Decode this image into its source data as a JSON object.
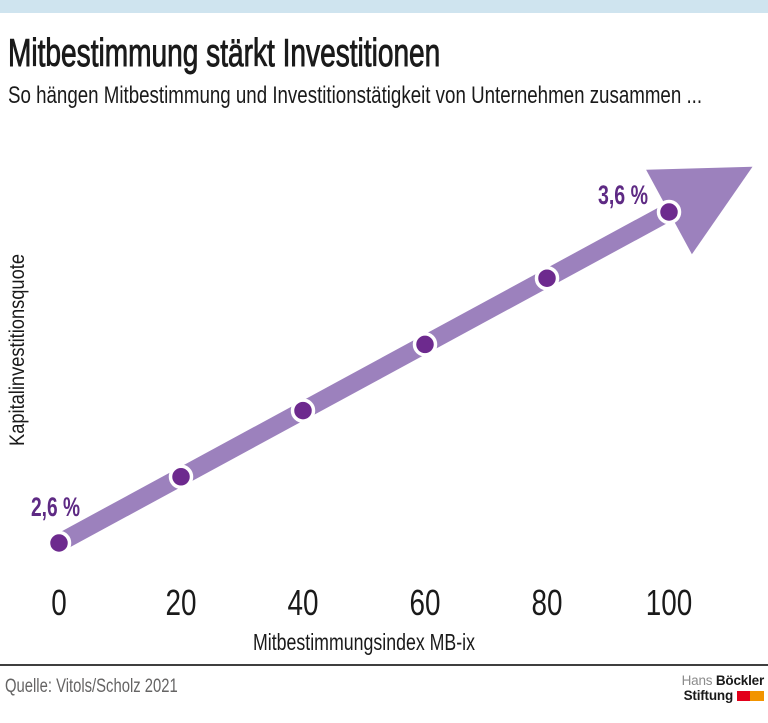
{
  "colors": {
    "top_band": "#cfe4ef",
    "text": "#1a1a1a",
    "source_text": "#656464",
    "divider": "#3f3f3f",
    "logo_gray": "#8b8b8b",
    "logo_red": "#e2001a",
    "logo_orange": "#f29400"
  },
  "header": {
    "title": "Mitbestimmung stärkt Investitionen",
    "subtitle": "So hängen Mitbestimmung und Investitionstätigkeit von Unternehmen zusammen ..."
  },
  "chart_data": {
    "type": "line",
    "x": [
      0,
      20,
      40,
      60,
      80,
      100
    ],
    "values": [
      2.6,
      2.8,
      3.0,
      3.2,
      3.4,
      3.6
    ],
    "x_tick_labels": [
      "0",
      "20",
      "40",
      "60",
      "80",
      "100"
    ],
    "xlabel": "Mitbestimmungsindex MB-ix",
    "ylabel": "Kapitalinvestitionsquote",
    "xlim": [
      0,
      100
    ],
    "ylim": [
      2.6,
      3.6
    ],
    "grid": false,
    "legend": "none",
    "first_point_label": "2,6 %",
    "last_point_label": "3,6 %",
    "colors": {
      "line": "#9c81bd",
      "arrow": "#9c81bd",
      "point": "#6d2a8e",
      "point_ring": "#ffffff",
      "point_label": "#5e2a84",
      "tick_label": "#1a1a1a",
      "axis_label": "#1a1a1a"
    }
  },
  "footer": {
    "source": "Quelle: Vitols/Scholz 2021",
    "logo": {
      "name_regular": "Hans",
      "name_bold": "Böckler",
      "line2_bold": "Stiftung"
    }
  }
}
